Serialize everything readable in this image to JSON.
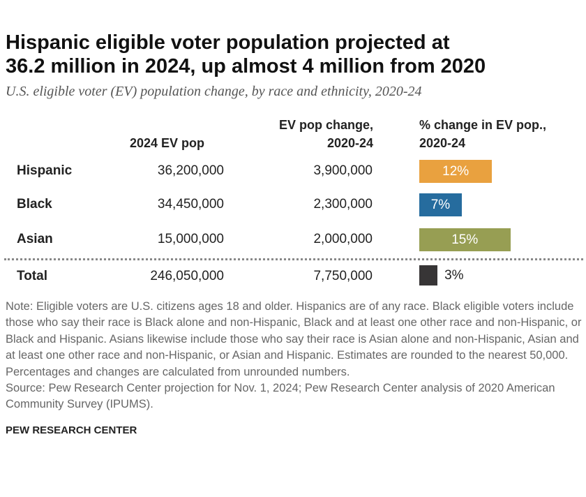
{
  "chart_data": {
    "type": "table",
    "title": [
      "Hispanic eligible voter population projected at",
      "36.2 million in 2024, up almost 4 million from 2020"
    ],
    "subtitle": "U.S. eligible voter (EV) population change, by race and ethnicity, 2020-24",
    "columns": [
      [
        "",
        "2024 EV pop"
      ],
      [
        "EV pop change,",
        "2020-24"
      ],
      [
        "% change in EV pop.,",
        "2020-24"
      ]
    ],
    "rows": [
      {
        "label": "Hispanic",
        "ev_pop": "36,200,000",
        "change": "3,900,000",
        "pct": 12,
        "pct_label": "12%",
        "color": "#E9A13F"
      },
      {
        "label": "Black",
        "ev_pop": "34,450,000",
        "change": "2,300,000",
        "pct": 7,
        "pct_label": "7%",
        "color": "#266C9E"
      },
      {
        "label": "Asian",
        "ev_pop": "15,000,000",
        "change": "2,000,000",
        "pct": 15,
        "pct_label": "15%",
        "color": "#979E53"
      },
      {
        "label": "Total",
        "ev_pop": "246,050,000",
        "change": "7,750,000",
        "pct": 3,
        "pct_label": "3%",
        "color": "#373536"
      }
    ],
    "note": "Note: Eligible voters are U.S. citizens ages 18 and older. Hispanics are of any race. Black eligible voters include those who say their race is Black alone and non-Hispanic, Black and at least one other race and non-Hispanic, or Black and Hispanic. Asians likewise include those who say their race is Asian alone and non-Hispanic, Asian and at least one other race and non-Hispanic, or Asian and Hispanic. Estimates are rounded to the nearest 50,000. Percentages and changes are calculated from unrounded numbers.",
    "source": "Source: Pew Research Center projection for Nov. 1, 2024; Pew Research Center analysis of 2020 American Community Survey (IPUMS).",
    "credit": "PEW RESEARCH CENTER"
  }
}
